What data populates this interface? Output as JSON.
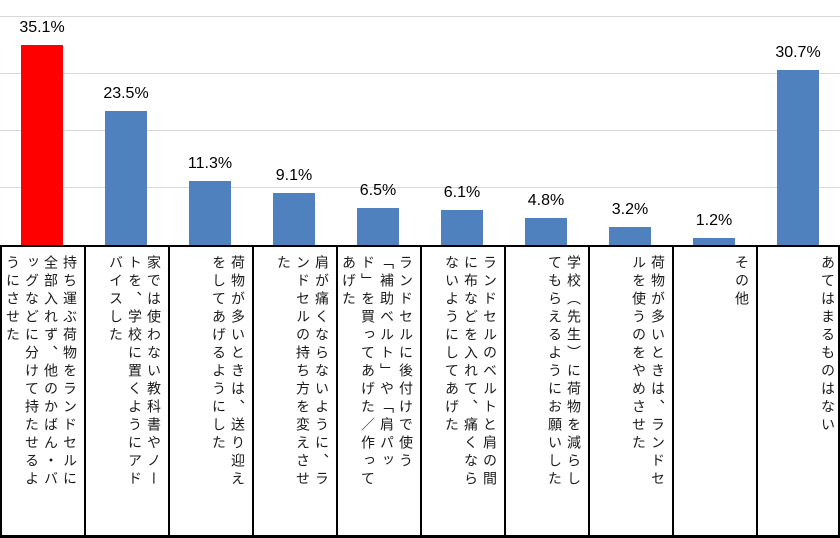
{
  "chart_data": {
    "type": "bar",
    "title": "",
    "xlabel": "",
    "ylabel": "",
    "unit": "%",
    "ylim": [
      0,
      43
    ],
    "grid": true,
    "gridline_values": [
      10,
      20,
      30,
      40
    ],
    "gridline_color": "#d9d9d9",
    "legend": "none",
    "categories": [
      "持ち運ぶ荷物をランドセルに全部入れず、他のかばん・バッグなどに分けて持たせるようにさせた",
      "家では使わない教科書やノートを、学校に置くようにアドバイスした",
      "荷物が多いときは、送り迎えをしてあげるようにした",
      "肩が痛くならないように、ランドセルの持ち方を変えさせた",
      "ランドセルに後付けで使う「補助ベルト」や「肩パッド」を買ってあげた／作ってあげた",
      "ランドセルのベルトと肩の間に布などを入れて、痛くならないようにしてあげた",
      "学校（先生）に荷物を減らしてもらえるようにお願いした",
      "荷物が多いときは、ランドセルを使うのをやめさせた",
      "その他",
      "あてはまるものはない"
    ],
    "values": [
      35.1,
      23.5,
      11.3,
      9.1,
      6.5,
      6.1,
      4.8,
      3.2,
      1.2,
      30.7
    ],
    "value_labels": [
      "35.1%",
      "23.5%",
      "11.3%",
      "9.1%",
      "6.5%",
      "6.1%",
      "4.8%",
      "3.2%",
      "1.2%",
      "30.7%"
    ],
    "bar_colors": [
      "#ff0000",
      "#4e81bd",
      "#4e81bd",
      "#4e81bd",
      "#4e81bd",
      "#4e81bd",
      "#4e81bd",
      "#4e81bd",
      "#4e81bd",
      "#4e81bd"
    ],
    "highlight_color": "#ff0000",
    "default_bar_color": "#4e81bd"
  }
}
